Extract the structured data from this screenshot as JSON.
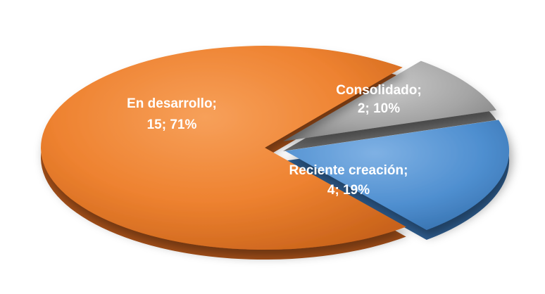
{
  "chart_data": {
    "type": "pie",
    "style": "3d-exploded",
    "slices": [
      {
        "name": "Consolidado",
        "value": 2,
        "percent": 10,
        "color": "#a5a5a5",
        "label_line1": "Consolidado;",
        "label_line2": "2; 10%"
      },
      {
        "name": "Reciente creación",
        "value": 4,
        "percent": 19,
        "color": "#4f8fd0",
        "label_line1": "Reciente creación;",
        "label_line2": "4; 19%"
      },
      {
        "name": "En desarrollo",
        "value": 15,
        "percent": 71,
        "color": "#f0842a",
        "label_line1": "En desarrollo;",
        "label_line2": "15; 71%"
      }
    ],
    "legend": "none"
  }
}
